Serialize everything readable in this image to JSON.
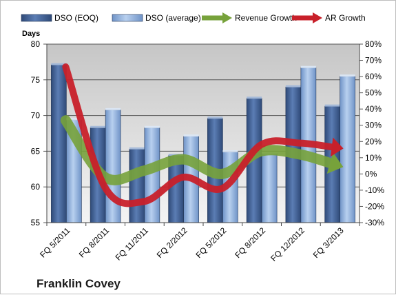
{
  "chart_data": {
    "type": "bar",
    "categories": [
      "FQ 5/2011",
      "FQ 8/2011",
      "FQ 11/2011",
      "FQ 2/2012",
      "FQ 5/2012",
      "FQ 8/2012",
      "FQ 12/2012",
      "FQ 3/2013"
    ],
    "series": [
      {
        "name": "DSO (EOQ)",
        "type": "bar",
        "axis": "left",
        "color": "#4a6a9e",
        "values": [
          77.1,
          68.3,
          65.3,
          64.4,
          69.6,
          72.4,
          74.0,
          71.3
        ]
      },
      {
        "name": "DSO (average)",
        "type": "bar",
        "axis": "left",
        "color": "#8fb0dc",
        "values": [
          69.4,
          70.8,
          68.3,
          67.1,
          64.9,
          64.7,
          76.7,
          75.5
        ]
      },
      {
        "name": "Revenue Growth",
        "type": "line",
        "axis": "right",
        "color": "#77a23b",
        "values": [
          0.33,
          -0.02,
          0.02,
          0.09,
          0.0,
          0.14,
          0.12,
          0.05
        ]
      },
      {
        "name": "AR Growth",
        "type": "line",
        "axis": "right",
        "color": "#c8202a",
        "values": [
          0.66,
          -0.08,
          -0.17,
          -0.02,
          -0.09,
          0.18,
          0.19,
          0.16
        ]
      }
    ],
    "ylabel": "Days",
    "ylim": [
      55,
      80
    ],
    "yticks": [
      "55",
      "60",
      "65",
      "70",
      "75",
      "80"
    ],
    "y2lim": [
      -0.3,
      0.8
    ],
    "y2ticks": [
      "-30%",
      "-20%",
      "-10%",
      "0%",
      "10%",
      "20%",
      "30%",
      "40%",
      "50%",
      "60%",
      "70%",
      "80%"
    ],
    "grid": true,
    "legend": "top",
    "company": "Franklin Covey"
  }
}
